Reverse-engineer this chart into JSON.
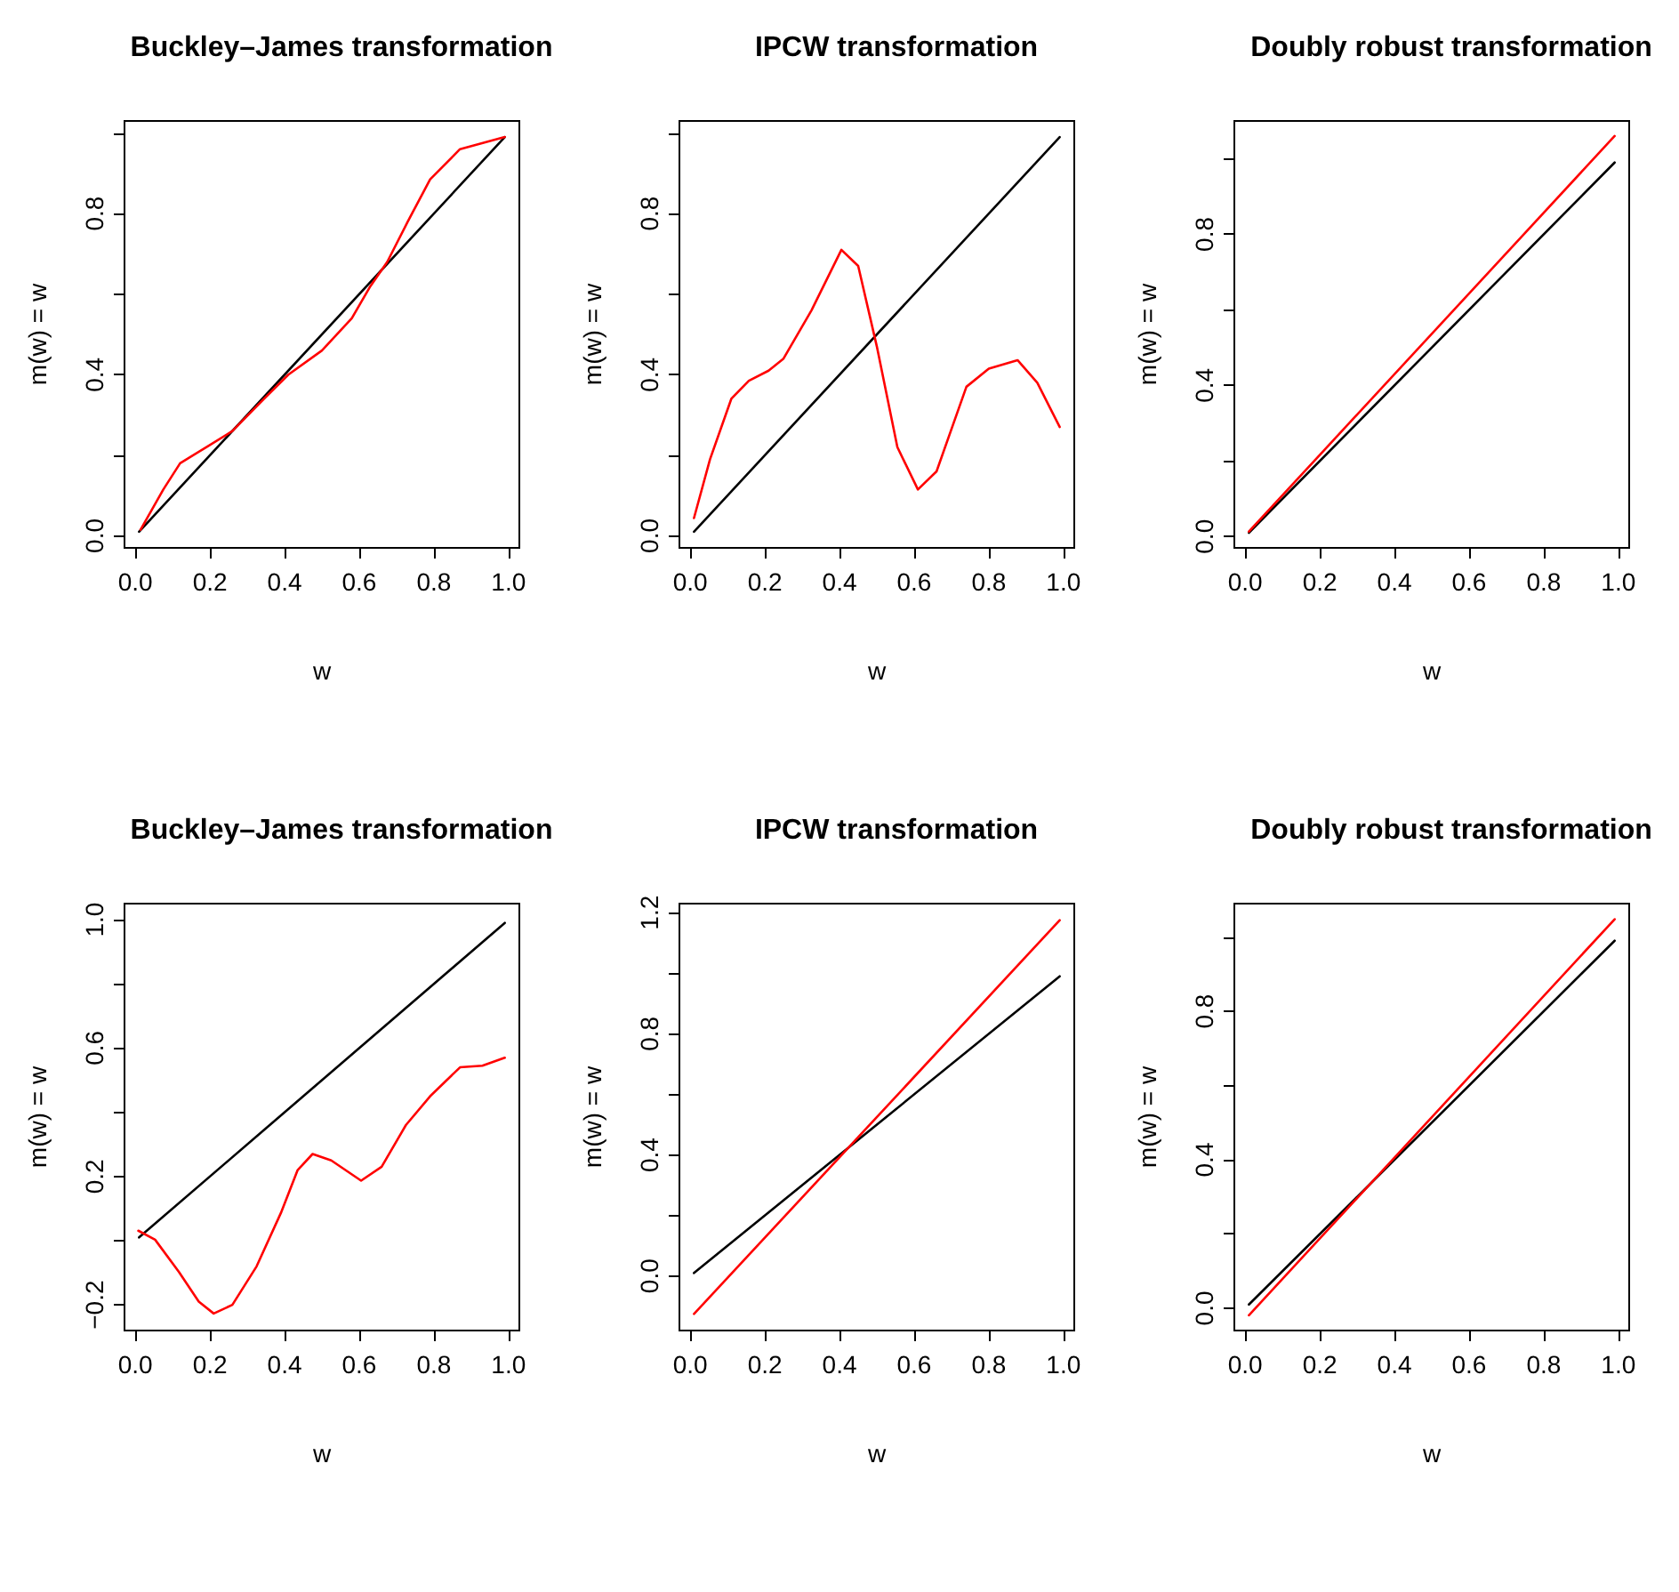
{
  "chart_data": [
    {
      "type": "line",
      "title": "Buckley–James transformation",
      "xlabel": "w",
      "ylabel": "m(w) = w",
      "xlim": [
        -0.029,
        1.029
      ],
      "ylim": [
        -0.03,
        1.03
      ],
      "xticks": [
        {
          "value": 0,
          "label": "0.0"
        },
        {
          "value": 0.2,
          "label": "0.2"
        },
        {
          "value": 0.4,
          "label": "0.4"
        },
        {
          "value": 0.6,
          "label": "0.6"
        },
        {
          "value": 0.8,
          "label": "0.8"
        },
        {
          "value": 1,
          "label": "1.0"
        }
      ],
      "yticks": [
        {
          "value": 0,
          "label": "0.0"
        },
        {
          "value": 0.2,
          "label": null
        },
        {
          "value": 0.4,
          "label": "0.4"
        },
        {
          "value": 0.6,
          "label": null
        },
        {
          "value": 0.8,
          "label": "0.8"
        },
        {
          "value": 1,
          "label": null
        }
      ],
      "series": [
        {
          "color": "#000000",
          "x": [
            0.01,
            0.99
          ],
          "values": [
            0.01,
            0.99
          ]
        },
        {
          "color": "#ff0000",
          "x": [
            0.014,
            0.075,
            0.12,
            0.19,
            0.26,
            0.345,
            0.41,
            0.5,
            0.58,
            0.63,
            0.675,
            0.73,
            0.79,
            0.87,
            0.99
          ],
          "values": [
            0.015,
            0.115,
            0.18,
            0.22,
            0.26,
            0.34,
            0.4,
            0.46,
            0.54,
            0.62,
            0.68,
            0.78,
            0.885,
            0.96,
            0.99
          ]
        }
      ]
    },
    {
      "type": "line",
      "title": "IPCW transformation",
      "xlabel": "w",
      "ylabel": "m(w) = w",
      "xlim": [
        -0.029,
        1.029
      ],
      "ylim": [
        -0.03,
        1.03
      ],
      "xticks": [
        {
          "value": 0,
          "label": "0.0"
        },
        {
          "value": 0.2,
          "label": "0.2"
        },
        {
          "value": 0.4,
          "label": "0.4"
        },
        {
          "value": 0.6,
          "label": "0.6"
        },
        {
          "value": 0.8,
          "label": "0.8"
        },
        {
          "value": 1,
          "label": "1.0"
        }
      ],
      "yticks": [
        {
          "value": 0,
          "label": "0.0"
        },
        {
          "value": 0.2,
          "label": null
        },
        {
          "value": 0.4,
          "label": "0.4"
        },
        {
          "value": 0.6,
          "label": null
        },
        {
          "value": 0.8,
          "label": "0.8"
        },
        {
          "value": 1,
          "label": null
        }
      ],
      "series": [
        {
          "color": "#000000",
          "x": [
            0.01,
            0.99
          ],
          "values": [
            0.01,
            0.99
          ]
        },
        {
          "color": "#ff0000",
          "x": [
            0.01,
            0.053,
            0.11,
            0.157,
            0.21,
            0.25,
            0.325,
            0.405,
            0.45,
            0.5,
            0.555,
            0.61,
            0.66,
            0.74,
            0.8,
            0.877,
            0.93,
            0.99
          ],
          "values": [
            0.044,
            0.19,
            0.34,
            0.385,
            0.41,
            0.44,
            0.56,
            0.71,
            0.67,
            0.47,
            0.22,
            0.115,
            0.16,
            0.37,
            0.415,
            0.436,
            0.38,
            0.27
          ]
        }
      ]
    },
    {
      "type": "line",
      "title": "Doubly robust transformation",
      "xlabel": "w",
      "ylabel": "m(w) = w",
      "xlim": [
        -0.029,
        1.029
      ],
      "ylim": [
        -0.03,
        1.1
      ],
      "xticks": [
        {
          "value": 0,
          "label": "0.0"
        },
        {
          "value": 0.2,
          "label": "0.2"
        },
        {
          "value": 0.4,
          "label": "0.4"
        },
        {
          "value": 0.6,
          "label": "0.6"
        },
        {
          "value": 0.8,
          "label": "0.8"
        },
        {
          "value": 1,
          "label": "1.0"
        }
      ],
      "yticks": [
        {
          "value": 0,
          "label": "0.0"
        },
        {
          "value": 0.2,
          "label": null
        },
        {
          "value": 0.4,
          "label": "0.4"
        },
        {
          "value": 0.6,
          "label": null
        },
        {
          "value": 0.8,
          "label": "0.8"
        },
        {
          "value": 1,
          "label": null
        }
      ],
      "series": [
        {
          "color": "#000000",
          "x": [
            0.01,
            0.99
          ],
          "values": [
            0.01,
            0.99
          ]
        },
        {
          "color": "#ff0000",
          "x": [
            0.01,
            0.99
          ],
          "values": [
            0.013,
            1.06
          ]
        }
      ]
    },
    {
      "type": "line",
      "title": "Buckley–James transformation",
      "xlabel": "w",
      "ylabel": "m(w) = w",
      "xlim": [
        -0.029,
        1.029
      ],
      "ylim": [
        -0.28,
        1.05
      ],
      "xticks": [
        {
          "value": 0,
          "label": "0.0"
        },
        {
          "value": 0.2,
          "label": "0.2"
        },
        {
          "value": 0.4,
          "label": "0.4"
        },
        {
          "value": 0.6,
          "label": "0.6"
        },
        {
          "value": 0.8,
          "label": "0.8"
        },
        {
          "value": 1,
          "label": "1.0"
        }
      ],
      "yticks": [
        {
          "value": -0.2,
          "label": "−0.2"
        },
        {
          "value": 0,
          "label": null
        },
        {
          "value": 0.2,
          "label": "0.2"
        },
        {
          "value": 0.4,
          "label": null
        },
        {
          "value": 0.6,
          "label": "0.6"
        },
        {
          "value": 0.8,
          "label": null
        },
        {
          "value": 1,
          "label": "1.0"
        }
      ],
      "series": [
        {
          "color": "#000000",
          "x": [
            0.01,
            0.99
          ],
          "values": [
            0.01,
            0.99
          ]
        },
        {
          "color": "#ff0000",
          "x": [
            0.008,
            0.053,
            0.117,
            0.17,
            0.21,
            0.26,
            0.325,
            0.39,
            0.435,
            0.475,
            0.525,
            0.605,
            0.66,
            0.725,
            0.79,
            0.87,
            0.93,
            0.99
          ],
          "values": [
            0.031,
            0.003,
            -0.098,
            -0.19,
            -0.227,
            -0.2,
            -0.08,
            0.086,
            0.22,
            0.27,
            0.25,
            0.187,
            0.23,
            0.36,
            0.45,
            0.54,
            0.545,
            0.57
          ]
        }
      ]
    },
    {
      "type": "line",
      "title": "IPCW transformation",
      "xlabel": "w",
      "ylabel": "m(w) = w",
      "xlim": [
        -0.029,
        1.029
      ],
      "ylim": [
        -0.18,
        1.23
      ],
      "xticks": [
        {
          "value": 0,
          "label": "0.0"
        },
        {
          "value": 0.2,
          "label": "0.2"
        },
        {
          "value": 0.4,
          "label": "0.4"
        },
        {
          "value": 0.6,
          "label": "0.6"
        },
        {
          "value": 0.8,
          "label": "0.8"
        },
        {
          "value": 1,
          "label": "1.0"
        }
      ],
      "yticks": [
        {
          "value": 0,
          "label": "0.0"
        },
        {
          "value": 0.2,
          "label": null
        },
        {
          "value": 0.4,
          "label": "0.4"
        },
        {
          "value": 0.6,
          "label": null
        },
        {
          "value": 0.8,
          "label": "0.8"
        },
        {
          "value": 1,
          "label": null
        },
        {
          "value": 1.2,
          "label": "1.2"
        }
      ],
      "series": [
        {
          "color": "#000000",
          "x": [
            0.01,
            0.99
          ],
          "values": [
            0.01,
            0.99
          ]
        },
        {
          "color": "#ff0000",
          "x": [
            0.01,
            0.99
          ],
          "values": [
            -0.125,
            1.175
          ]
        }
      ]
    },
    {
      "type": "line",
      "title": "Doubly robust transformation",
      "xlabel": "w",
      "ylabel": "m(w) = w",
      "xlim": [
        -0.029,
        1.029
      ],
      "ylim": [
        -0.06,
        1.09
      ],
      "xticks": [
        {
          "value": 0,
          "label": "0.0"
        },
        {
          "value": 0.2,
          "label": "0.2"
        },
        {
          "value": 0.4,
          "label": "0.4"
        },
        {
          "value": 0.6,
          "label": "0.6"
        },
        {
          "value": 0.8,
          "label": "0.8"
        },
        {
          "value": 1,
          "label": "1.0"
        }
      ],
      "yticks": [
        {
          "value": 0,
          "label": "0.0"
        },
        {
          "value": 0.2,
          "label": null
        },
        {
          "value": 0.4,
          "label": "0.4"
        },
        {
          "value": 0.6,
          "label": null
        },
        {
          "value": 0.8,
          "label": "0.8"
        },
        {
          "value": 1,
          "label": null
        }
      ],
      "series": [
        {
          "color": "#000000",
          "x": [
            0.01,
            0.99
          ],
          "values": [
            0.01,
            0.99
          ]
        },
        {
          "color": "#ff0000",
          "x": [
            0.01,
            0.99
          ],
          "values": [
            -0.019,
            1.048
          ]
        }
      ]
    }
  ]
}
